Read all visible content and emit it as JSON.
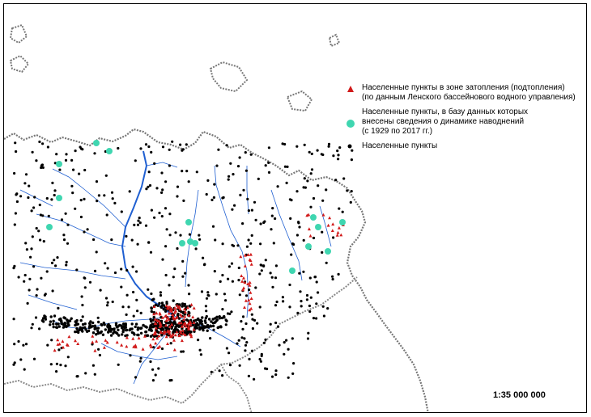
{
  "legend": {
    "flood_zone_line1": "Населенные пункты в зоне затопления (подтопления)",
    "flood_zone_line2": "(по данным Ленского бассейнового водного управления)",
    "database_line1": "Населенные пункты, в базу данных которых",
    "database_line2": "внесены сведения о динамике наводнений",
    "database_line3": "(с 1929 по 2017 гг.)",
    "settlements": "Населенные пункты"
  },
  "scale": "1:35 000 000",
  "colors": {
    "flood_zone": "#d11a1a",
    "database": "#3fd6b0",
    "settlement": "#000000",
    "river": "#1f5fd1",
    "border": "#777777"
  }
}
